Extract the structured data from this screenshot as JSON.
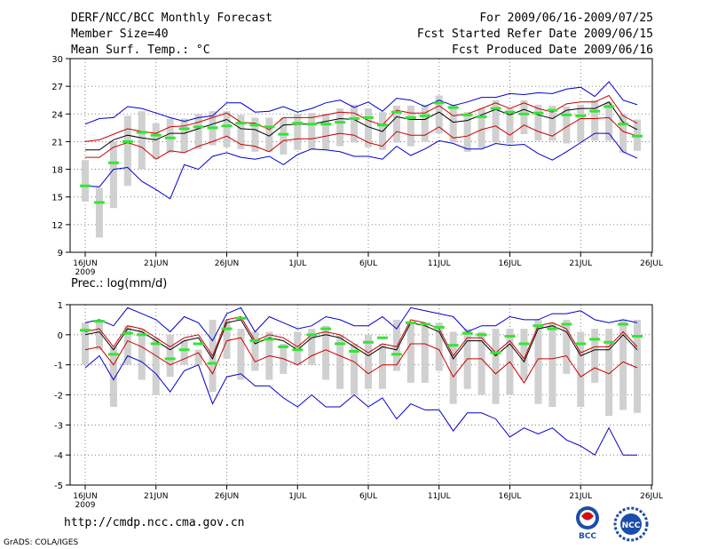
{
  "header": {
    "left": [
      "DERF/NCC/BCC Monthly Forecast",
      "Member Size=40",
      "Mean Surf. Temp.: °C"
    ],
    "right": [
      "For 2009/06/16-2009/07/25",
      "Fcst Started Refer Date 2009/06/15",
      "Fcst Produced Date 2009/06/16"
    ]
  },
  "footer": {
    "url": "http://cmdp.ncc.cma.gov.cn",
    "grads": "GrADS: COLA/IGES"
  },
  "logos": {
    "bcc": "BCC",
    "ncc": "NCC"
  },
  "colors": {
    "box": "#d0d0d0",
    "green": "#33e633",
    "black": "#000000",
    "red": "#cc0000",
    "blue": "#0000cc",
    "grid": "#666666"
  },
  "chart_data": [
    {
      "type": "line",
      "title": "Mean Surf. Temp.: °C",
      "ylim": [
        9,
        30
      ],
      "yticks": [
        9,
        12,
        15,
        18,
        21,
        24,
        27,
        30
      ],
      "xlim": [
        0,
        40
      ],
      "xticks": [
        {
          "x": 0,
          "label": "16JUN",
          "sub": "2009"
        },
        {
          "x": 5,
          "label": "21JUN"
        },
        {
          "x": 10,
          "label": "26JUN"
        },
        {
          "x": 15,
          "label": "1JUL"
        },
        {
          "x": 20,
          "label": "6JUL"
        },
        {
          "x": 25,
          "label": "11JUL"
        },
        {
          "x": 30,
          "label": "16JUL"
        },
        {
          "x": 35,
          "label": "21JUL"
        },
        {
          "x": 40,
          "label": "26JUL"
        }
      ],
      "x": [
        0,
        1,
        2,
        3,
        4,
        5,
        6,
        7,
        8,
        9,
        10,
        11,
        12,
        13,
        14,
        15,
        16,
        17,
        18,
        19,
        20,
        21,
        22,
        23,
        24,
        25,
        26,
        27,
        28,
        29,
        30,
        31,
        32,
        33,
        34,
        35,
        36,
        37,
        38,
        39
      ],
      "series": [
        {
          "name": "box_low",
          "values": [
            14.5,
            10.6,
            13.8,
            16.2,
            18.0,
            19.1,
            19.8,
            19.8,
            20.2,
            20.6,
            20.4,
            20.2,
            19.9,
            19.9,
            19.6,
            20.1,
            20.1,
            20.1,
            20.5,
            20.9,
            20.4,
            20.1,
            20.9,
            20.5,
            21.0,
            21.9,
            20.9,
            19.9,
            20.3,
            20.9,
            20.8,
            21.8,
            21.1,
            21.1,
            20.8,
            20.9,
            21.1,
            21.1,
            19.8,
            20.0
          ]
        },
        {
          "name": "box_high",
          "values": [
            19.0,
            16.0,
            21.0,
            23.8,
            24.3,
            23.0,
            23.5,
            23.5,
            24.0,
            24.3,
            24.3,
            23.9,
            23.6,
            23.6,
            23.6,
            24.0,
            24.1,
            24.0,
            24.6,
            25.0,
            24.6,
            24.2,
            24.9,
            24.9,
            25.0,
            26.0,
            25.0,
            24.2,
            24.6,
            25.5,
            24.6,
            25.5,
            25.0,
            24.9,
            24.8,
            25.0,
            25.5,
            25.3,
            24.0,
            23.4
          ]
        },
        {
          "name": "observed",
          "values": [
            16.2,
            14.4,
            18.7,
            21.0,
            22.0,
            21.7,
            21.4,
            22.4,
            22.6,
            22.5,
            22.7,
            23.0,
            22.8,
            22.6,
            21.8,
            23.0,
            22.9,
            22.9,
            23.1,
            23.5,
            23.6,
            22.8,
            24.2,
            23.6,
            23.8,
            25.2,
            24.7,
            23.9,
            23.7,
            24.6,
            24.2,
            24.0,
            24.1,
            24.4,
            23.9,
            23.8,
            24.3,
            24.8,
            22.9,
            21.6
          ]
        },
        {
          "name": "ensemble_mean",
          "values": [
            20.1,
            20.1,
            21.2,
            21.7,
            21.4,
            21.2,
            21.9,
            21.9,
            22.4,
            22.9,
            23.4,
            22.4,
            22.3,
            21.6,
            22.8,
            22.9,
            22.9,
            23.2,
            23.5,
            23.4,
            22.6,
            22.1,
            23.7,
            23.4,
            23.4,
            24.2,
            23.1,
            23.3,
            23.9,
            24.5,
            23.9,
            24.5,
            23.9,
            23.5,
            24.4,
            24.6,
            24.6,
            25.3,
            23.1,
            22.3
          ]
        },
        {
          "name": "mean_plus_sd",
          "values": [
            21.0,
            21.2,
            21.8,
            22.4,
            22.1,
            21.9,
            22.6,
            22.7,
            23.1,
            23.6,
            24.1,
            23.1,
            23.0,
            22.3,
            23.6,
            23.6,
            23.6,
            23.9,
            24.2,
            24.1,
            23.3,
            22.8,
            24.4,
            24.1,
            24.1,
            24.9,
            23.8,
            24.0,
            24.6,
            25.2,
            24.6,
            25.2,
            24.6,
            24.2,
            25.1,
            25.3,
            25.3,
            26.0,
            23.8,
            23.0
          ]
        },
        {
          "name": "mean_minus_sd",
          "values": [
            19.3,
            19.3,
            20.4,
            20.9,
            20.4,
            19.1,
            20.0,
            19.8,
            20.5,
            21.0,
            21.6,
            20.7,
            20.5,
            19.9,
            21.1,
            21.3,
            21.3,
            21.6,
            21.9,
            21.7,
            20.9,
            20.5,
            22.1,
            21.7,
            21.7,
            22.6,
            21.4,
            21.6,
            22.3,
            22.7,
            21.7,
            22.8,
            22.1,
            21.6,
            22.6,
            23.5,
            23.5,
            23.6,
            22.1,
            21.6
          ]
        },
        {
          "name": "ensemble_max",
          "values": [
            22.9,
            23.5,
            23.6,
            24.8,
            24.6,
            24.1,
            23.6,
            23.2,
            23.6,
            23.8,
            25.2,
            25.2,
            24.2,
            24.3,
            24.8,
            24.2,
            24.6,
            25.2,
            25.5,
            24.7,
            25.3,
            24.3,
            25.7,
            25.5,
            24.8,
            25.5,
            24.9,
            25.3,
            25.8,
            25.8,
            26.2,
            26.1,
            26.3,
            26.2,
            26.7,
            26.9,
            25.9,
            27.5,
            25.5,
            25.0
          ]
        },
        {
          "name": "ensemble_min",
          "values": [
            16.2,
            16.1,
            18.0,
            18.2,
            16.7,
            15.8,
            14.8,
            18.5,
            18.0,
            19.4,
            19.8,
            19.3,
            19.1,
            19.4,
            18.5,
            19.6,
            20.2,
            20.1,
            19.9,
            19.4,
            19.4,
            19.1,
            20.5,
            19.5,
            20.2,
            21.1,
            20.8,
            20.2,
            20.2,
            20.8,
            20.6,
            20.7,
            19.7,
            19.0,
            19.9,
            20.9,
            21.9,
            21.9,
            19.9,
            19.2
          ]
        }
      ]
    },
    {
      "type": "line",
      "title": "Prec.: log(mm/d)",
      "ylim": [
        -5,
        1
      ],
      "yticks": [
        -5,
        -4,
        -3,
        -2,
        -1,
        0,
        1
      ],
      "xlim": [
        0,
        40
      ],
      "xticks": [
        {
          "x": 0,
          "label": "16JUN",
          "sub": "2009"
        },
        {
          "x": 5,
          "label": "21JUN"
        },
        {
          "x": 10,
          "label": "26JUN"
        },
        {
          "x": 15,
          "label": "1JUL"
        },
        {
          "x": 20,
          "label": "6JUL"
        },
        {
          "x": 25,
          "label": "11JUL"
        },
        {
          "x": 30,
          "label": "16JUL"
        },
        {
          "x": 35,
          "label": "21JUL"
        },
        {
          "x": 40,
          "label": "26JUL"
        }
      ],
      "x": [
        0,
        1,
        2,
        3,
        4,
        5,
        6,
        7,
        8,
        9,
        10,
        11,
        12,
        13,
        14,
        15,
        16,
        17,
        18,
        19,
        20,
        21,
        22,
        23,
        24,
        25,
        26,
        27,
        28,
        29,
        30,
        31,
        32,
        33,
        34,
        35,
        36,
        37,
        38,
        39
      ],
      "series": [
        {
          "name": "box_low",
          "values": [
            -1.0,
            -0.5,
            -2.4,
            -1.0,
            -1.5,
            -2.0,
            -1.4,
            -1.0,
            -1.0,
            -1.9,
            -0.8,
            -1.5,
            -1.2,
            -1.5,
            -1.3,
            -1.0,
            -1.0,
            -1.5,
            -1.8,
            -2.0,
            -1.8,
            -1.8,
            -1.2,
            -1.6,
            -1.6,
            -1.2,
            -2.3,
            -1.8,
            -2.0,
            -2.3,
            -2.0,
            -1.5,
            -2.3,
            -2.4,
            -1.3,
            -2.4,
            -1.6,
            -2.7,
            -2.5,
            -2.6
          ]
        },
        {
          "name": "box_high",
          "values": [
            0.4,
            0.5,
            -0.4,
            0.3,
            0.2,
            -0.1,
            0.0,
            -0.2,
            -0.5,
            0.5,
            0.5,
            0.2,
            0.1,
            0.1,
            -0.3,
            0.1,
            0.2,
            0.3,
            0.0,
            -0.3,
            0.0,
            -0.3,
            0.5,
            0.4,
            0.3,
            0.4,
            0.1,
            0.2,
            0.1,
            0.2,
            0.2,
            0.2,
            0.5,
            0.4,
            0.5,
            0.1,
            0.2,
            0.2,
            0.5,
            0.5
          ]
        },
        {
          "name": "observed",
          "values": [
            0.15,
            0.45,
            -0.65,
            0.05,
            0.0,
            -0.3,
            -0.8,
            -0.5,
            -0.3,
            -0.95,
            0.2,
            0.55,
            -0.2,
            -0.15,
            -0.4,
            -0.5,
            0.0,
            0.2,
            -0.3,
            -0.55,
            -0.25,
            -0.1,
            -0.65,
            0.4,
            0.35,
            0.25,
            -0.35,
            0.05,
            0.0,
            -0.6,
            -0.05,
            -0.3,
            0.3,
            0.2,
            0.35,
            -0.3,
            -0.15,
            -0.25,
            0.35,
            -0.05
          ]
        },
        {
          "name": "ensemble_mean",
          "values": [
            0.0,
            0.1,
            -0.5,
            0.2,
            0.1,
            -0.2,
            -0.5,
            -0.2,
            -0.1,
            -0.8,
            0.4,
            0.5,
            -0.3,
            -0.1,
            -0.2,
            -0.5,
            -0.1,
            0.0,
            -0.1,
            -0.4,
            -0.7,
            -0.4,
            -0.5,
            0.4,
            0.3,
            0.1,
            -0.8,
            -0.2,
            -0.2,
            -0.7,
            -0.3,
            -0.9,
            0.2,
            0.3,
            0.1,
            -0.7,
            -0.5,
            -0.5,
            0.0,
            -0.5
          ]
        },
        {
          "name": "mean_plus_sd",
          "values": [
            0.1,
            0.2,
            -0.4,
            0.3,
            0.2,
            -0.1,
            -0.4,
            -0.1,
            0.0,
            -0.7,
            0.5,
            0.6,
            -0.2,
            0.0,
            -0.1,
            -0.4,
            0.0,
            0.1,
            0.0,
            -0.3,
            -0.6,
            -0.3,
            -0.4,
            0.5,
            0.4,
            0.2,
            -0.7,
            -0.1,
            -0.1,
            -0.6,
            -0.2,
            -0.8,
            0.3,
            0.4,
            0.2,
            -0.6,
            -0.4,
            -0.4,
            0.1,
            -0.4
          ]
        },
        {
          "name": "mean_minus_sd",
          "values": [
            -0.5,
            -0.4,
            -1.0,
            -0.2,
            -0.4,
            -0.7,
            -1.0,
            -0.8,
            -0.6,
            -1.3,
            -0.2,
            -0.1,
            -0.9,
            -0.7,
            -0.8,
            -1.0,
            -0.7,
            -0.5,
            -0.7,
            -0.9,
            -1.3,
            -1.0,
            -1.0,
            -0.3,
            -0.3,
            -0.5,
            -1.4,
            -0.8,
            -0.8,
            -1.3,
            -0.9,
            -1.6,
            -0.8,
            -0.8,
            -0.7,
            -1.4,
            -1.1,
            -1.3,
            -0.9,
            -1.1
          ]
        },
        {
          "name": "ensemble_max",
          "values": [
            0.4,
            0.5,
            0.3,
            0.9,
            0.7,
            0.5,
            0.1,
            0.6,
            0.4,
            -0.2,
            0.7,
            0.9,
            0.1,
            0.6,
            0.4,
            0.2,
            0.3,
            0.6,
            0.5,
            0.3,
            0.3,
            0.6,
            0.2,
            0.9,
            0.8,
            0.7,
            0.6,
            0.1,
            0.3,
            0.3,
            0.6,
            0.5,
            0.5,
            0.7,
            0.7,
            0.8,
            0.5,
            0.4,
            0.5,
            0.4
          ]
        },
        {
          "name": "ensemble_min",
          "values": [
            -1.1,
            -0.7,
            -1.5,
            -0.7,
            -0.9,
            -1.3,
            -1.9,
            -1.2,
            -1.0,
            -2.3,
            -1.4,
            -1.3,
            -1.7,
            -1.7,
            -2.1,
            -2.4,
            -2.0,
            -2.4,
            -2.4,
            -2.0,
            -2.4,
            -2.1,
            -2.8,
            -2.3,
            -2.5,
            -2.5,
            -3.2,
            -2.6,
            -2.6,
            -2.8,
            -3.4,
            -3.1,
            -3.3,
            -3.1,
            -3.5,
            -3.7,
            -4.0,
            -3.1,
            -4.0,
            -4.0
          ]
        }
      ]
    }
  ]
}
